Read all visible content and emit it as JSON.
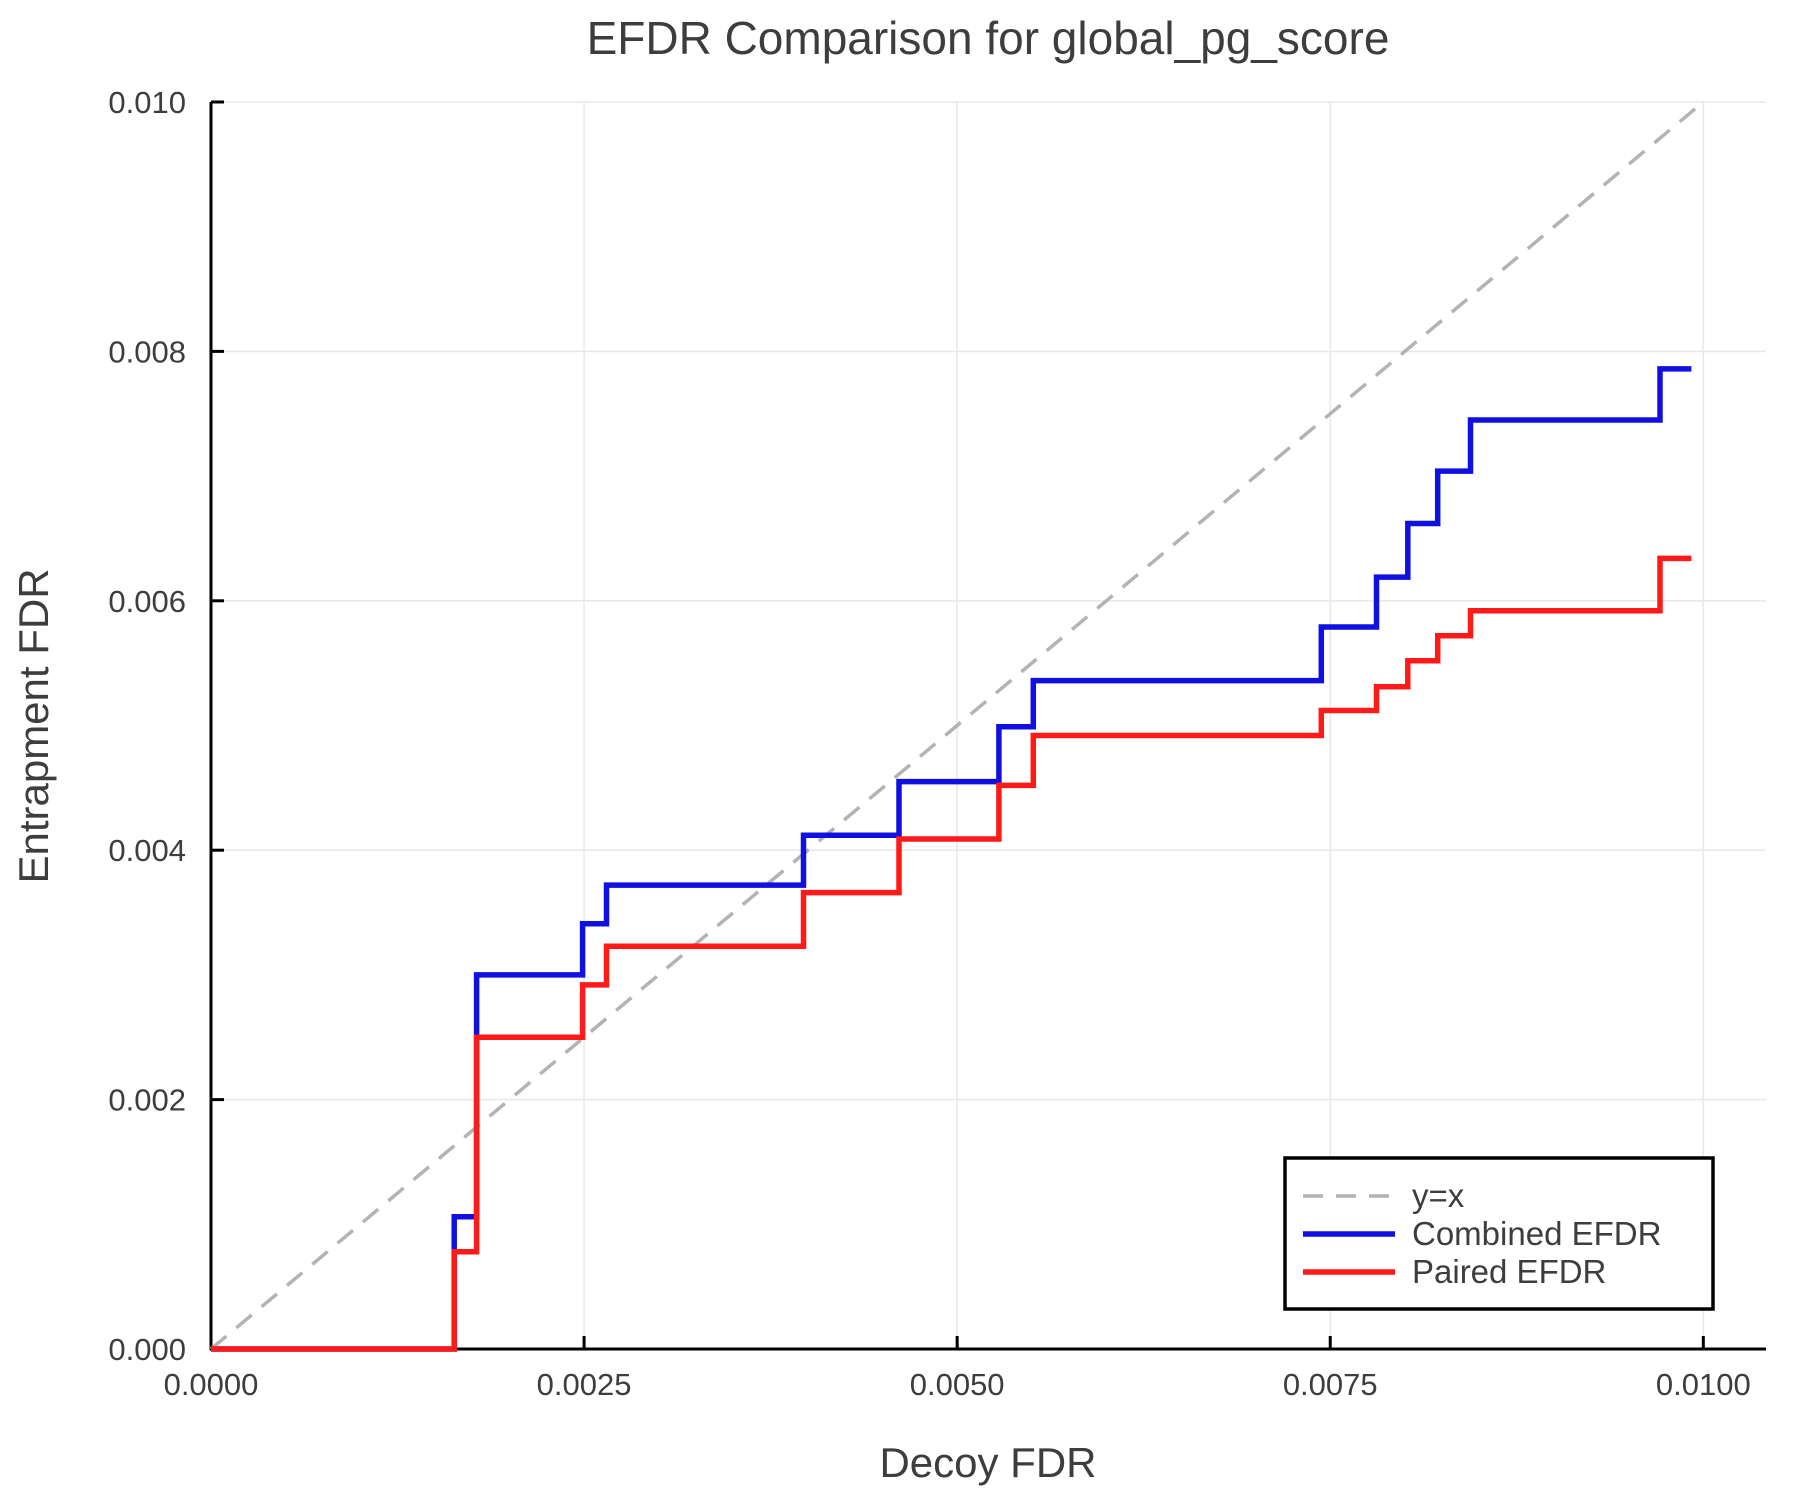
{
  "chart_data": {
    "type": "line",
    "subtype": "step",
    "title": "EFDR Comparison for global_pg_score",
    "xlabel": "Decoy FDR",
    "ylabel": "Entrapment FDR",
    "xlim": [
      0,
      0.01042
    ],
    "ylim": [
      0,
      0.01
    ],
    "grid": true,
    "x_ticks": [
      0.0,
      0.0025,
      0.005,
      0.0075,
      0.01
    ],
    "x_tick_labels": [
      "0.0000",
      "0.0025",
      "0.0050",
      "0.0075",
      "0.0100"
    ],
    "y_ticks": [
      0.0,
      0.002,
      0.004,
      0.006,
      0.008,
      0.01
    ],
    "y_tick_labels": [
      "0.000",
      "0.002",
      "0.004",
      "0.006",
      "0.008",
      "0.010"
    ],
    "legend": {
      "position": "lower right",
      "entries": [
        "y=x",
        "Combined EFDR",
        "Paired EFDR"
      ]
    },
    "series": [
      {
        "name": "y=x",
        "style": "dashed",
        "color": "#b3b3b3",
        "width": 3.5,
        "points": [
          [
            0,
            0
          ],
          [
            0.01,
            0.01
          ]
        ]
      },
      {
        "name": "Combined EFDR",
        "style": "solid",
        "color": "#1010e0",
        "width": 5.5,
        "points": [
          [
            0.0,
            0.0
          ],
          [
            0.00163,
            0.0
          ],
          [
            0.00163,
            0.00106
          ],
          [
            0.00178,
            0.00106
          ],
          [
            0.00178,
            0.003
          ],
          [
            0.00249,
            0.003
          ],
          [
            0.00249,
            0.00341
          ],
          [
            0.00265,
            0.00341
          ],
          [
            0.00265,
            0.00372
          ],
          [
            0.00397,
            0.00372
          ],
          [
            0.00397,
            0.00412
          ],
          [
            0.00461,
            0.00412
          ],
          [
            0.00461,
            0.00455
          ],
          [
            0.00528,
            0.00455
          ],
          [
            0.00528,
            0.00499
          ],
          [
            0.00551,
            0.00499
          ],
          [
            0.00551,
            0.00536
          ],
          [
            0.00744,
            0.00536
          ],
          [
            0.00744,
            0.00579
          ],
          [
            0.00781,
            0.00579
          ],
          [
            0.00781,
            0.00619
          ],
          [
            0.00802,
            0.00619
          ],
          [
            0.00802,
            0.00662
          ],
          [
            0.00822,
            0.00662
          ],
          [
            0.00822,
            0.00704
          ],
          [
            0.00844,
            0.00704
          ],
          [
            0.00844,
            0.00745
          ],
          [
            0.00971,
            0.00745
          ],
          [
            0.00971,
            0.00786
          ],
          [
            0.00992,
            0.00786
          ]
        ]
      },
      {
        "name": "Paired EFDR",
        "style": "solid",
        "color": "#ff1a1a",
        "width": 5.5,
        "points": [
          [
            0.0,
            0.0
          ],
          [
            0.00163,
            0.0
          ],
          [
            0.00163,
            0.00078
          ],
          [
            0.00178,
            0.00078
          ],
          [
            0.00178,
            0.0025
          ],
          [
            0.00249,
            0.0025
          ],
          [
            0.00249,
            0.00292
          ],
          [
            0.00265,
            0.00292
          ],
          [
            0.00265,
            0.00323
          ],
          [
            0.00397,
            0.00323
          ],
          [
            0.00397,
            0.00366
          ],
          [
            0.00461,
            0.00366
          ],
          [
            0.00461,
            0.00409
          ],
          [
            0.00528,
            0.00409
          ],
          [
            0.00528,
            0.00452
          ],
          [
            0.00551,
            0.00452
          ],
          [
            0.00551,
            0.00492
          ],
          [
            0.00744,
            0.00492
          ],
          [
            0.00744,
            0.00512
          ],
          [
            0.00781,
            0.00512
          ],
          [
            0.00781,
            0.00531
          ],
          [
            0.00802,
            0.00531
          ],
          [
            0.00802,
            0.00552
          ],
          [
            0.00822,
            0.00552
          ],
          [
            0.00822,
            0.00572
          ],
          [
            0.00844,
            0.00572
          ],
          [
            0.00844,
            0.00592
          ],
          [
            0.00971,
            0.00592
          ],
          [
            0.00971,
            0.00634
          ],
          [
            0.00992,
            0.00634
          ]
        ]
      }
    ],
    "style_colors": {
      "spine": "#000000",
      "grid": "#e9e9e9",
      "text": "#3d3d3d",
      "legend_border": "#000000",
      "legend_background": "#ffffff"
    }
  }
}
